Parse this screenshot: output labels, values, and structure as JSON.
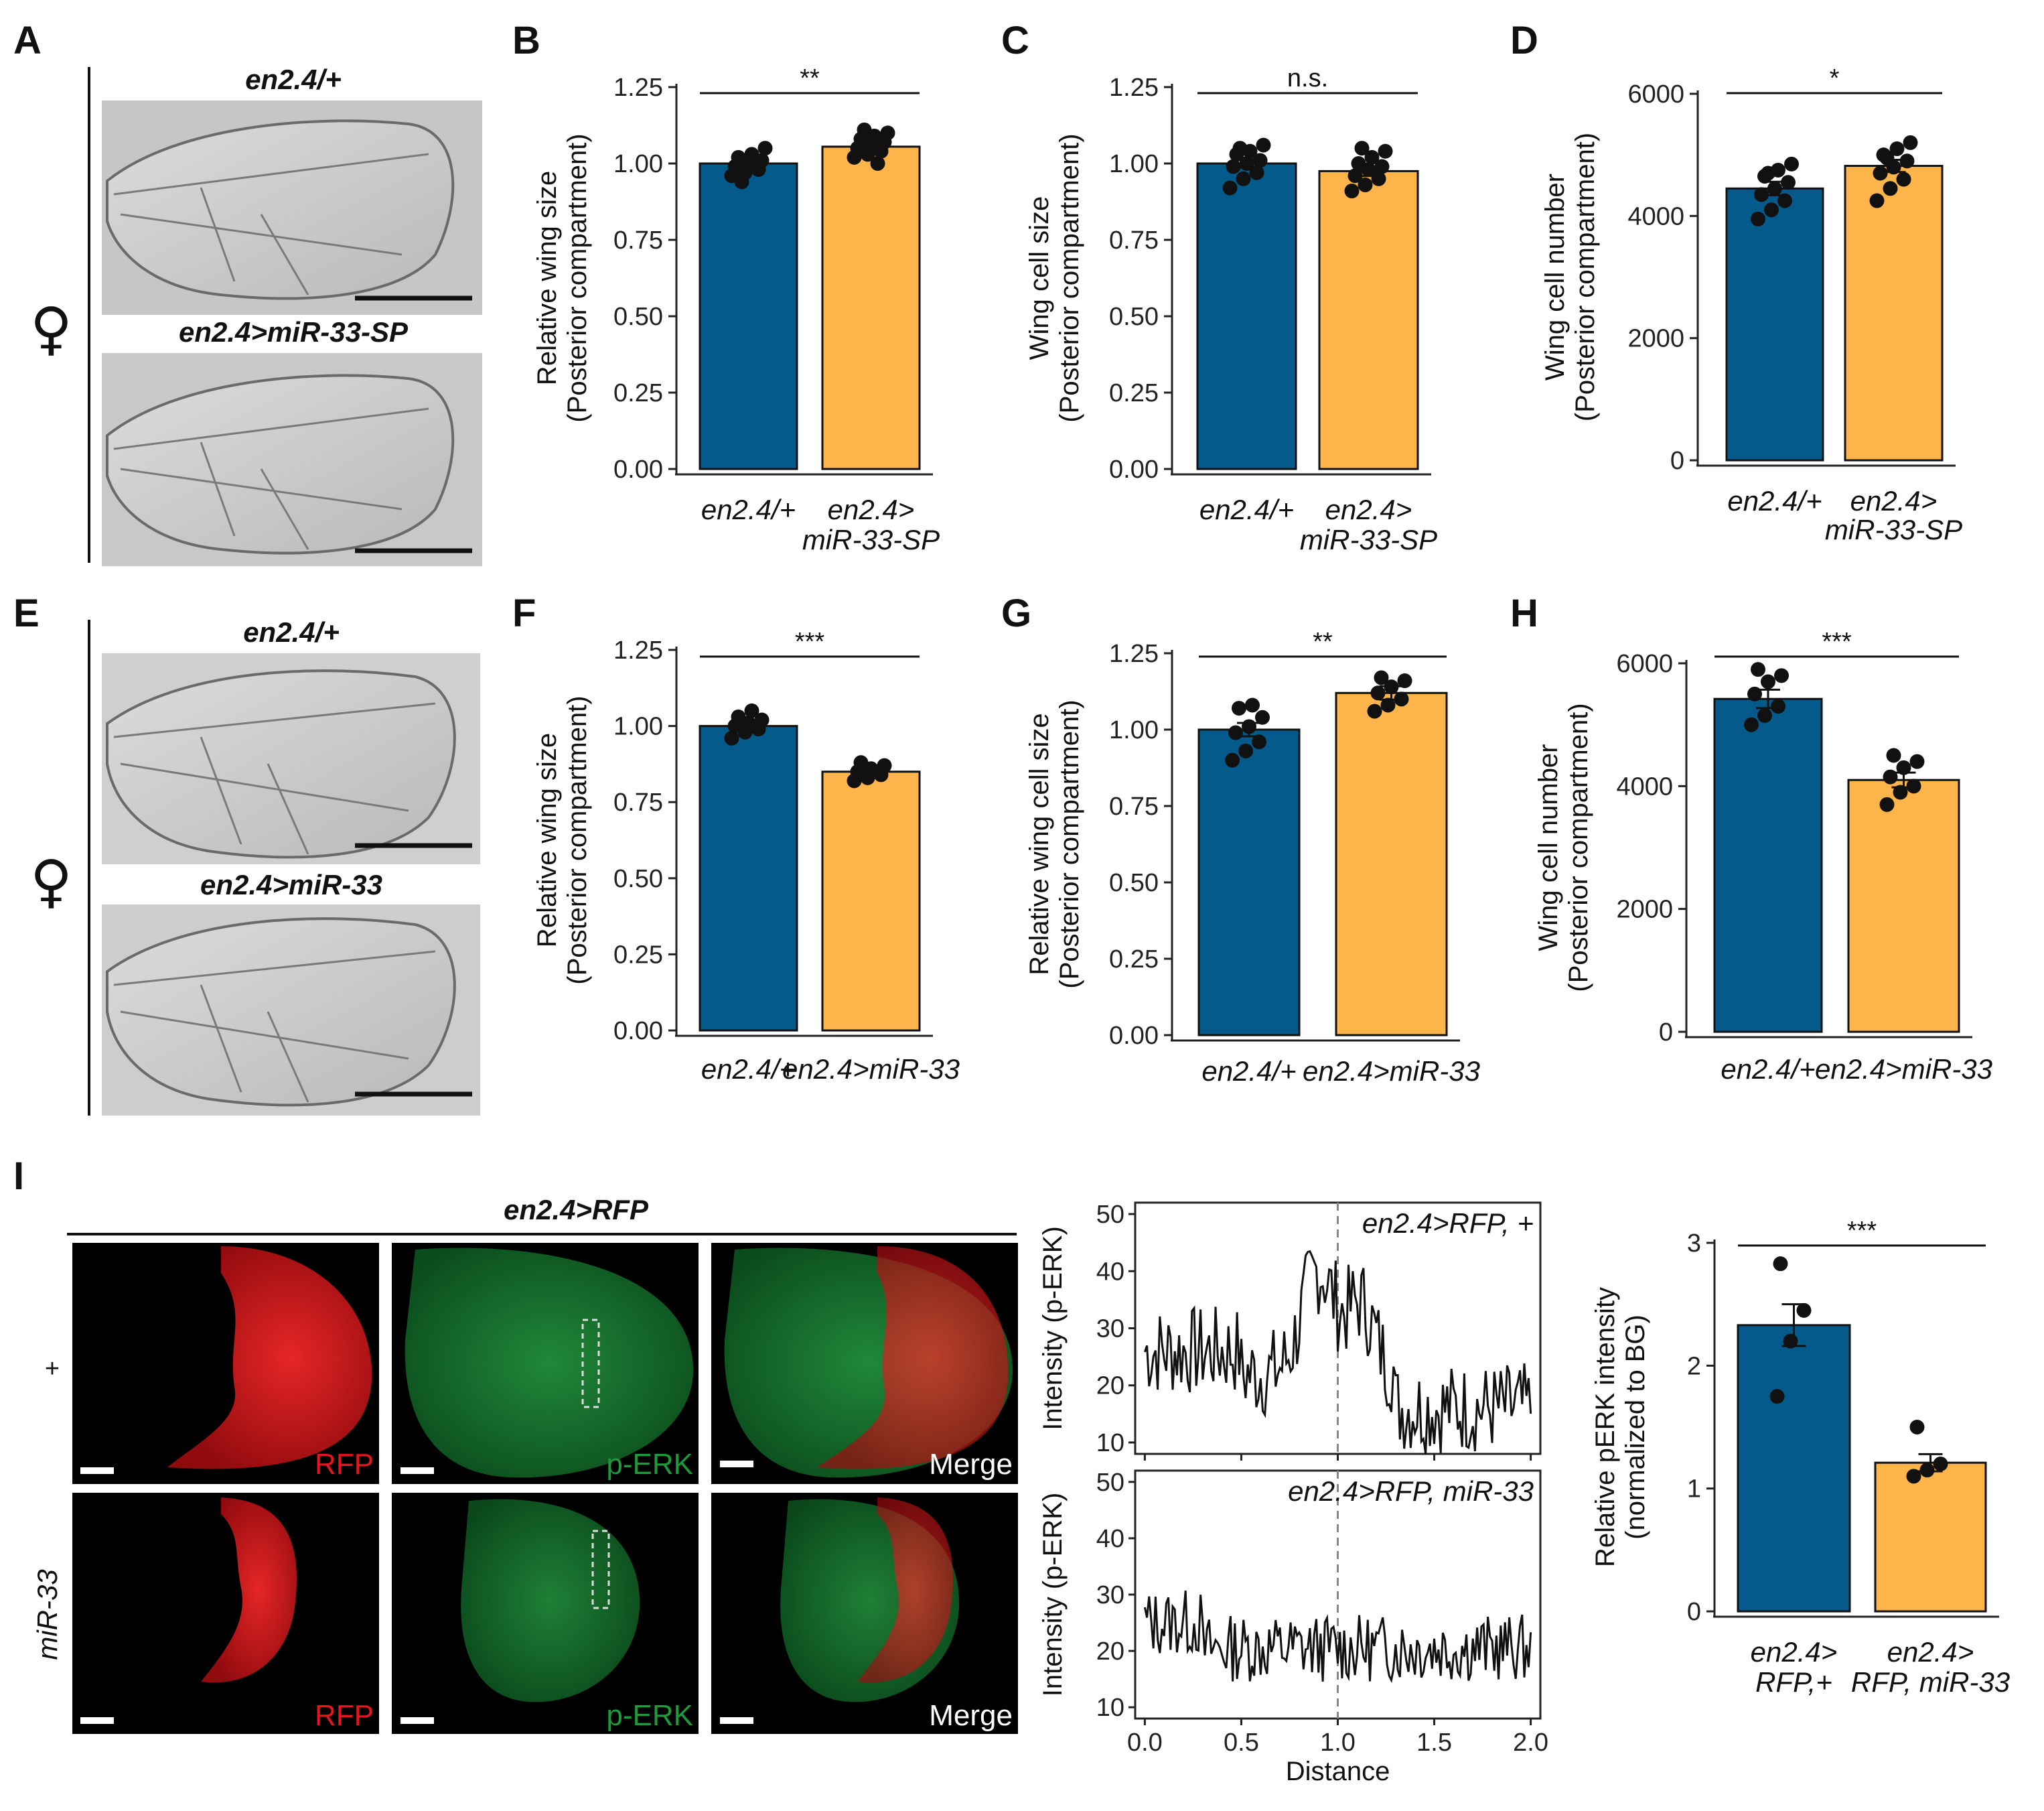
{
  "panels": {
    "A": "A",
    "B": "B",
    "C": "C",
    "D": "D",
    "E": "E",
    "F": "F",
    "G": "G",
    "H": "H",
    "I": "I"
  },
  "female_symbol": "♀",
  "wing_labels": {
    "a_top": "en2.4/+",
    "a_bottom": "en2.4>miR-33-SP",
    "e_top": "en2.4/+",
    "e_bottom": "en2.4>miR-33"
  },
  "colors": {
    "ctrl": "#045a8a",
    "treat": "#fdb44a",
    "rfp": "#e8141e",
    "perk": "#1d9a3a"
  },
  "chart_data": [
    {
      "id": "B",
      "type": "bar",
      "ylabel": "Relative wing size",
      "ylabel2": "(Posterior compartment)",
      "ylim": [
        0,
        1.25
      ],
      "yticks": [
        "0.00",
        "0.25",
        "0.50",
        "0.75",
        "1.00",
        "1.25"
      ],
      "categories": [
        [
          "en2.4/+"
        ],
        [
          "en2.4>",
          "miR-33-SP"
        ]
      ],
      "values": [
        1.0,
        1.055
      ],
      "errors": [
        0.01,
        0.012
      ],
      "significance": "**",
      "points": [
        [
          0.96,
          0.97,
          0.98,
          0.99,
          1.0,
          1.01,
          1.02,
          1.03,
          1.05,
          0.94
        ],
        [
          1.02,
          1.03,
          1.04,
          1.05,
          1.06,
          1.07,
          1.08,
          1.09,
          1.1,
          1.11,
          1.0
        ]
      ]
    },
    {
      "id": "C",
      "type": "bar",
      "ylabel": "Wing cell size",
      "ylabel2": "(Posterior compartment)",
      "ylim": [
        0,
        1.25
      ],
      "yticks": [
        "0.00",
        "0.25",
        "0.50",
        "0.75",
        "1.00",
        "1.25"
      ],
      "categories": [
        [
          "en2.4/+"
        ],
        [
          "en2.4>",
          "miR-33-SP"
        ]
      ],
      "values": [
        1.0,
        0.975
      ],
      "errors": [
        0.014,
        0.016
      ],
      "significance": "n.s.",
      "points": [
        [
          0.92,
          0.95,
          0.97,
          0.99,
          1.0,
          1.01,
          1.03,
          1.04,
          1.06,
          1.05
        ],
        [
          0.91,
          0.93,
          0.95,
          0.96,
          0.98,
          0.99,
          1.0,
          1.02,
          1.04,
          1.05
        ]
      ]
    },
    {
      "id": "D",
      "type": "bar",
      "ylabel": "Wing cell number",
      "ylabel2": "(Posterior compartment)",
      "ylim": [
        0,
        6000
      ],
      "yticks": [
        "0",
        "2000",
        "4000",
        "6000"
      ],
      "categories": [
        [
          "en2.4/+"
        ],
        [
          "en2.4>",
          "miR-33-SP"
        ]
      ],
      "values": [
        4450,
        4820
      ],
      "errors": [
        110,
        100
      ],
      "significance": "*",
      "points": [
        [
          3950,
          4100,
          4250,
          4350,
          4450,
          4550,
          4650,
          4750,
          4850,
          4700
        ],
        [
          4250,
          4450,
          4600,
          4700,
          4800,
          4900,
          5000,
          5100,
          5200,
          4950
        ]
      ]
    },
    {
      "id": "F",
      "type": "bar",
      "ylabel": "Relative wing size",
      "ylabel2": "(Posterior compartment)",
      "ylim": [
        0,
        1.25
      ],
      "yticks": [
        "0.00",
        "0.25",
        "0.50",
        "0.75",
        "1.00",
        "1.25"
      ],
      "categories": [
        [
          "en2.4/+"
        ],
        [
          "en2.4>miR-33"
        ]
      ],
      "values": [
        1.0,
        0.85
      ],
      "errors": [
        0.01,
        0.008
      ],
      "significance": "***",
      "points": [
        [
          0.96,
          0.98,
          0.99,
          1.0,
          1.01,
          1.02,
          1.03,
          1.05
        ],
        [
          0.82,
          0.83,
          0.84,
          0.85,
          0.86,
          0.87,
          0.88
        ]
      ]
    },
    {
      "id": "G",
      "type": "bar",
      "ylabel": "Relative wing cell size",
      "ylabel2": "(Posterior compartment)",
      "ylim": [
        0,
        1.25
      ],
      "yticks": [
        "0.00",
        "0.25",
        "0.50",
        "0.75",
        "1.00",
        "1.25"
      ],
      "categories": [
        [
          "en2.4/+"
        ],
        [
          "en2.4>miR-33"
        ]
      ],
      "values": [
        1.0,
        1.12
      ],
      "errors": [
        0.022,
        0.022
      ],
      "significance": "**",
      "points": [
        [
          0.9,
          0.93,
          0.96,
          0.99,
          1.01,
          1.04,
          1.07,
          1.08
        ],
        [
          1.06,
          1.08,
          1.1,
          1.12,
          1.14,
          1.16,
          1.17
        ]
      ]
    },
    {
      "id": "H",
      "type": "bar",
      "ylabel": "Wing cell number",
      "ylabel2": "(Posterior compartment)",
      "ylim": [
        0,
        6000
      ],
      "yticks": [
        "0",
        "2000",
        "4000",
        "6000"
      ],
      "categories": [
        [
          "en2.4/+"
        ],
        [
          "en2.4>miR-33"
        ]
      ],
      "values": [
        5420,
        4100
      ],
      "errors": [
        150,
        120
      ],
      "significance": "***",
      "points": [
        [
          5000,
          5150,
          5300,
          5500,
          5700,
          5800,
          5900
        ],
        [
          3700,
          3900,
          4000,
          4150,
          4300,
          4400,
          4500
        ]
      ]
    },
    {
      "id": "I-bar",
      "type": "bar",
      "ylabel": "Relative pERK intensity",
      "ylabel2": "(normalized to BG)",
      "ylim": [
        0,
        3
      ],
      "yticks": [
        "0",
        "1",
        "2",
        "3"
      ],
      "categories": [
        [
          "en2.4>",
          "RFP,+"
        ],
        [
          "en2.4>",
          "RFP, miR-33"
        ]
      ],
      "values": [
        2.33,
        1.21
      ],
      "errors": [
        0.17,
        0.07
      ],
      "significance": "***",
      "points": [
        [
          1.75,
          2.2,
          2.45,
          2.83
        ],
        [
          1.1,
          1.15,
          1.2,
          1.5
        ]
      ]
    },
    {
      "id": "I-line-top",
      "type": "line",
      "ylabel": "Intensity (p-ERK)",
      "label": "en2.4>RFP, +",
      "ylim": [
        8,
        52
      ],
      "yticks": [
        "10",
        "20",
        "30",
        "40",
        "50"
      ],
      "xlim": [
        -0.05,
        2.05
      ],
      "vline": 1.0
    },
    {
      "id": "I-line-bottom",
      "type": "line",
      "ylabel": "Intensity (p-ERK)",
      "label": "en2.4>RFP, miR-33",
      "ylim": [
        8,
        52
      ],
      "yticks": [
        "10",
        "20",
        "30",
        "40",
        "50"
      ],
      "xlim": [
        -0.05,
        2.05
      ],
      "xticks": [
        "0.0",
        "0.5",
        "1.0",
        "1.5",
        "2.0"
      ],
      "xlabel": "Distance",
      "vline": 1.0
    }
  ],
  "micrograph": {
    "header": "en2.4>RFP",
    "rows": [
      "+",
      "miR-33"
    ],
    "channels": [
      "RFP",
      "p-ERK",
      "Merge"
    ]
  }
}
